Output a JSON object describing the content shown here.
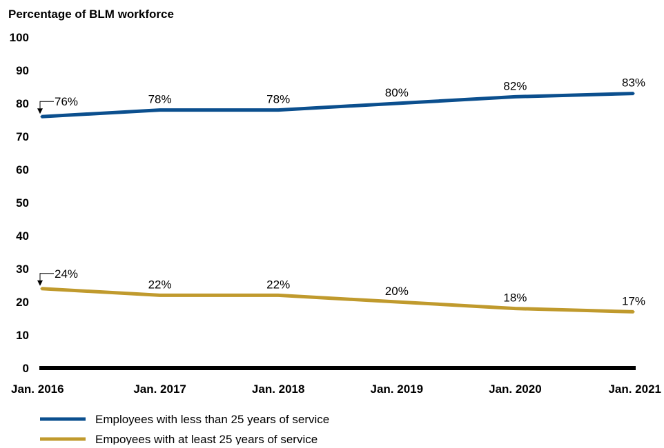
{
  "chart_data": {
    "type": "line",
    "title": "",
    "ylabel": "Percentage of BLM workforce",
    "xlabel": "",
    "categories": [
      "Jan. 2016",
      "Jan. 2017",
      "Jan. 2018",
      "Jan. 2019",
      "Jan. 2020",
      "Jan. 2021"
    ],
    "ylim": [
      0,
      100
    ],
    "yticks": [
      0,
      10,
      20,
      30,
      40,
      50,
      60,
      70,
      80,
      90,
      100
    ],
    "grid": false,
    "legend_position": "bottom-left",
    "series": [
      {
        "name": "Employees with less than 25 years of service",
        "color": "#0b4f8e",
        "values": [
          76,
          78,
          78,
          80,
          82,
          83
        ],
        "labels": [
          "76%",
          "78%",
          "78%",
          "80%",
          "82%",
          "83%"
        ]
      },
      {
        "name": "Empoyees with at least 25 years of service",
        "color": "#c09a2d",
        "values": [
          24,
          22,
          22,
          20,
          18,
          17
        ],
        "labels": [
          "24%",
          "22%",
          "22%",
          "20%",
          "18%",
          "17%"
        ]
      }
    ]
  }
}
